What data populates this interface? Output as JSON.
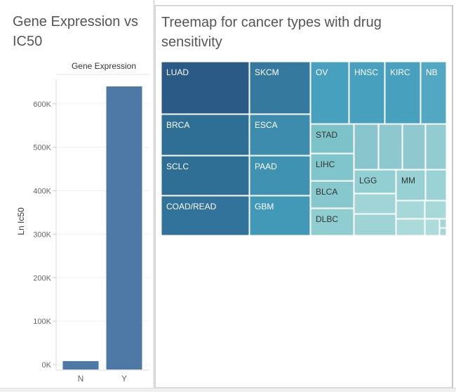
{
  "bar_chart": {
    "title": "Gene Expression vs IC50",
    "chart_data": {
      "type": "bar",
      "column_header": "Gene Expression",
      "categories": [
        "N",
        "Y"
      ],
      "values": [
        8000,
        640000
      ],
      "ylabel": "Ln Ic50",
      "ylim": [
        0,
        640000
      ],
      "y_ticks": [
        {
          "value": 0,
          "label": "0K"
        },
        {
          "value": 100000,
          "label": "100K"
        },
        {
          "value": 200000,
          "label": "200K"
        },
        {
          "value": 300000,
          "label": "300K"
        },
        {
          "value": 400000,
          "label": "400K"
        },
        {
          "value": 500000,
          "label": "500K"
        },
        {
          "value": 600000,
          "label": "600K"
        }
      ],
      "bar_color": "#4e79a7",
      "grid": "horizontal"
    }
  },
  "treemap": {
    "title": "Treemap for cancer types with drug sensitivity",
    "chart_data": {
      "type": "treemap",
      "tiles": [
        {
          "label": "LUAD",
          "color": "#2b5a87"
        },
        {
          "label": "SKCM",
          "color": "#35799e"
        },
        {
          "label": "OV",
          "color": "#47a0bd"
        },
        {
          "label": "HNSC",
          "color": "#47a0bd"
        },
        {
          "label": "KIRC",
          "color": "#47a0bd"
        },
        {
          "label": "NB",
          "color": "#52a8c2"
        },
        {
          "label": "BRCA",
          "color": "#2f6e95"
        },
        {
          "label": "ESCA",
          "color": "#3d8cad"
        },
        {
          "label": "STAD",
          "color": "#7cc2c9"
        },
        {
          "label": "SCLC",
          "color": "#2f6e95"
        },
        {
          "label": "PAAD",
          "color": "#3f92b2"
        },
        {
          "label": "LIHC",
          "color": "#80c5cb"
        },
        {
          "label": "COAD/READ",
          "color": "#31739a"
        },
        {
          "label": "GBM",
          "color": "#4198b7"
        },
        {
          "label": "BLCA",
          "color": "#86c8cd"
        },
        {
          "label": "DLBC",
          "color": "#8fcdd1"
        },
        {
          "label": "LGG",
          "color": "#92cfd3"
        },
        {
          "label": "MM",
          "color": "#97d1d4"
        },
        {
          "label": "",
          "color": "#88c5cc"
        },
        {
          "label": "",
          "color": "#8cc8ce"
        },
        {
          "label": "",
          "color": "#8fc9cf"
        },
        {
          "label": "",
          "color": "#92cbd0"
        },
        {
          "label": "",
          "color": "#9ad2d5"
        },
        {
          "label": "",
          "color": "#a0d4d6"
        },
        {
          "label": "",
          "color": "#9fd4d6"
        },
        {
          "label": "",
          "color": "#a6d8d9"
        },
        {
          "label": "",
          "color": "#a8d9d9"
        },
        {
          "label": "",
          "color": "#aadada"
        },
        {
          "label": "",
          "color": "#acdbdb"
        },
        {
          "label": "",
          "color": "#a2d6d7"
        },
        {
          "label": "",
          "color": "#a4d7d8"
        }
      ]
    }
  }
}
